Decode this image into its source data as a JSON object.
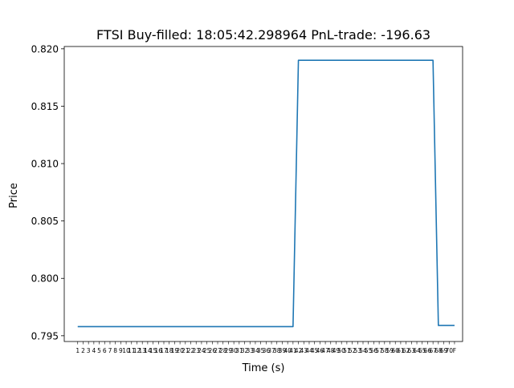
{
  "chart_data": {
    "type": "line",
    "title": "FTSI  Buy-filled:  18:05:42.298964  PnL-trade:  -196.63",
    "xlabel": "Time (s)",
    "ylabel": "Price",
    "ylim": [
      0.7945,
      0.8202
    ],
    "y_ticks": [
      "0.795",
      "0.800",
      "0.805",
      "0.810",
      "0.815",
      "0.820"
    ],
    "x_tick_labels": [
      "1",
      "2",
      "3",
      "4",
      "5",
      "6",
      "7",
      "8",
      "9",
      "10",
      "11",
      "12",
      "13",
      "14",
      "15",
      "16",
      "17",
      "18",
      "19",
      "20",
      "21",
      "22",
      "23",
      "24",
      "25",
      "26",
      "27",
      "28",
      "29",
      "30",
      "31",
      "32",
      "33",
      "34",
      "35",
      "36",
      "37",
      "38",
      "39",
      "40",
      "41",
      "42",
      "43",
      "44",
      "45",
      "46",
      "47",
      "48",
      "49",
      "50",
      "51",
      "52",
      "53",
      "54",
      "55",
      "56",
      "57",
      "58",
      "59",
      "60",
      "61",
      "62",
      "63",
      "64",
      "65",
      "66",
      "67",
      "68",
      "69",
      "70",
      "F"
    ],
    "line_color": "#1f77b4",
    "grid": false,
    "series": [
      {
        "x": [
          1,
          2,
          3,
          4,
          5,
          6,
          7,
          8,
          9,
          10,
          11,
          12,
          13,
          14,
          15,
          16,
          17,
          18,
          19,
          20,
          21,
          22,
          23,
          24,
          25,
          26,
          27,
          28,
          29,
          30,
          31,
          32,
          33,
          34,
          35,
          36,
          37,
          38,
          39,
          40,
          41,
          42,
          43,
          44,
          45,
          46,
          47,
          48,
          49,
          50,
          51,
          52,
          53,
          54,
          55,
          56,
          57,
          58,
          59,
          60,
          61,
          62,
          63,
          64,
          65,
          66,
          67,
          68,
          69,
          70,
          71
        ],
        "values": [
          0.7958,
          0.7958,
          0.7958,
          0.7958,
          0.7958,
          0.7958,
          0.7958,
          0.7958,
          0.7958,
          0.7958,
          0.7958,
          0.7958,
          0.7958,
          0.7958,
          0.7958,
          0.7958,
          0.7958,
          0.7958,
          0.7958,
          0.7958,
          0.7958,
          0.7958,
          0.7958,
          0.7958,
          0.7958,
          0.7958,
          0.7958,
          0.7958,
          0.7958,
          0.7958,
          0.7958,
          0.7958,
          0.7958,
          0.7958,
          0.7958,
          0.7958,
          0.7958,
          0.7958,
          0.7958,
          0.7958,
          0.7958,
          0.819,
          0.819,
          0.819,
          0.819,
          0.819,
          0.819,
          0.819,
          0.819,
          0.819,
          0.819,
          0.819,
          0.819,
          0.819,
          0.819,
          0.819,
          0.819,
          0.819,
          0.819,
          0.819,
          0.819,
          0.819,
          0.819,
          0.819,
          0.819,
          0.819,
          0.819,
          0.7959,
          0.7959,
          0.7959,
          0.7959
        ]
      }
    ]
  }
}
